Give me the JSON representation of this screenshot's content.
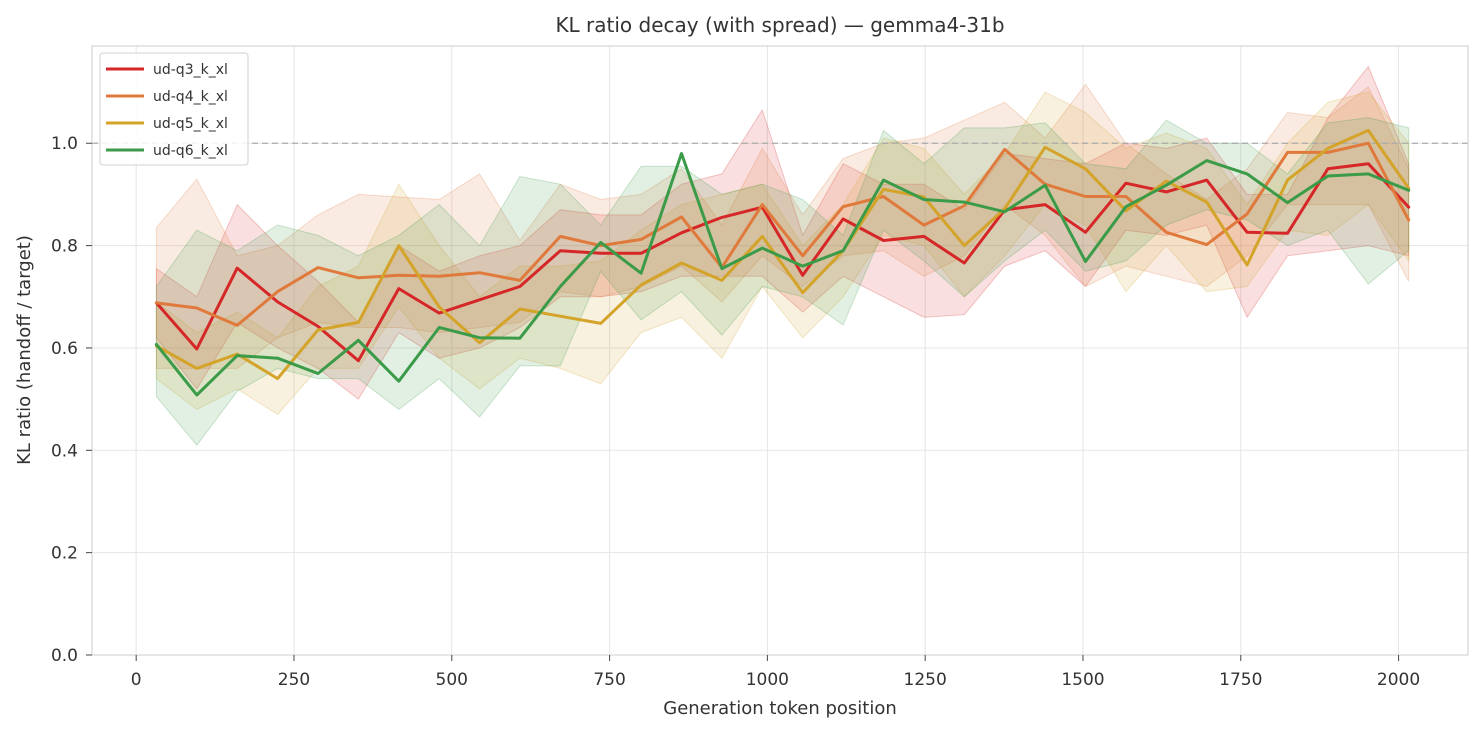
{
  "chart_data": {
    "type": "line",
    "title": "KL ratio decay (with spread) — gemma4-31b",
    "xlabel": "Generation token position",
    "ylabel": "KL ratio (handoff / target)",
    "xlim": [
      -70,
      2110
    ],
    "ylim": [
      0.0,
      1.19
    ],
    "xticks": [
      0,
      250,
      500,
      750,
      1000,
      1250,
      1500,
      1750,
      2000
    ],
    "yticks": [
      0.0,
      0.2,
      0.4,
      0.6,
      0.8,
      1.0
    ],
    "ytick_labels": [
      "0.0",
      "0.2",
      "0.4",
      "0.6",
      "0.8",
      "1.0"
    ],
    "reference_line": 1.0,
    "grid": true,
    "legend_position": "top-left",
    "x": [
      32,
      96,
      160,
      224,
      288,
      352,
      416,
      480,
      544,
      608,
      672,
      736,
      800,
      864,
      928,
      992,
      1056,
      1120,
      1184,
      1248,
      1312,
      1376,
      1440,
      1504,
      1568,
      1632,
      1696,
      1760,
      1824,
      1888,
      1952,
      2016
    ],
    "series": [
      {
        "name": "ud-q3_k_xl",
        "color": "#d62728",
        "values": [
          0.688,
          0.598,
          0.756,
          0.69,
          0.642,
          0.575,
          0.716,
          0.668,
          0.694,
          0.72,
          0.79,
          0.785,
          0.785,
          0.825,
          0.855,
          0.875,
          0.742,
          0.852,
          0.81,
          0.818,
          0.766,
          0.87,
          0.88,
          0.826,
          0.922,
          0.905,
          0.928,
          0.826,
          0.824,
          0.95,
          0.96,
          0.875
        ],
        "lower": [
          0.62,
          0.52,
          0.65,
          0.6,
          0.56,
          0.5,
          0.63,
          0.58,
          0.6,
          0.64,
          0.7,
          0.7,
          0.71,
          0.74,
          0.74,
          0.74,
          0.67,
          0.74,
          0.7,
          0.66,
          0.665,
          0.76,
          0.79,
          0.72,
          0.83,
          0.82,
          0.84,
          0.66,
          0.78,
          0.79,
          0.8,
          0.78
        ],
        "upper": [
          0.755,
          0.7,
          0.88,
          0.8,
          0.73,
          0.65,
          0.8,
          0.75,
          0.78,
          0.8,
          0.87,
          0.86,
          0.86,
          0.92,
          0.94,
          1.065,
          0.82,
          0.96,
          0.92,
          0.92,
          0.87,
          0.98,
          0.97,
          0.96,
          1.0,
          0.99,
          1.01,
          0.9,
          0.9,
          1.05,
          1.15,
          0.96
        ]
      },
      {
        "name": "ud-q4_k_xl",
        "color": "#e0793c",
        "values": [
          0.688,
          0.678,
          0.644,
          0.71,
          0.757,
          0.737,
          0.742,
          0.74,
          0.747,
          0.732,
          0.818,
          0.8,
          0.812,
          0.856,
          0.757,
          0.88,
          0.78,
          0.876,
          0.896,
          0.84,
          0.878,
          0.988,
          0.92,
          0.896,
          0.896,
          0.826,
          0.802,
          0.862,
          0.982,
          0.982,
          1.0,
          0.85
        ],
        "lower": [
          0.56,
          0.56,
          0.56,
          0.62,
          0.65,
          0.64,
          0.64,
          0.63,
          0.64,
          0.65,
          0.71,
          0.7,
          0.72,
          0.76,
          0.69,
          0.78,
          0.72,
          0.78,
          0.79,
          0.74,
          0.78,
          0.88,
          0.82,
          0.72,
          0.76,
          0.74,
          0.72,
          0.78,
          0.88,
          0.88,
          0.88,
          0.73
        ],
        "upper": [
          0.835,
          0.93,
          0.78,
          0.8,
          0.86,
          0.9,
          0.895,
          0.89,
          0.94,
          0.81,
          0.92,
          0.89,
          0.9,
          0.95,
          0.84,
          0.99,
          0.86,
          0.97,
          1.0,
          1.01,
          1.045,
          1.08,
          1.01,
          1.115,
          1.0,
          0.94,
          0.89,
          0.95,
          1.06,
          1.05,
          1.11,
          0.95
        ]
      },
      {
        "name": "ud-q5_k_xl",
        "color": "#d4a32a",
        "values": [
          0.604,
          0.56,
          0.588,
          0.54,
          0.635,
          0.65,
          0.8,
          0.68,
          0.61,
          0.676,
          0.662,
          0.648,
          0.723,
          0.766,
          0.732,
          0.818,
          0.708,
          0.79,
          0.91,
          0.895,
          0.8,
          0.872,
          0.992,
          0.95,
          0.868,
          0.926,
          0.885,
          0.762,
          0.928,
          0.99,
          1.025,
          0.912
        ],
        "lower": [
          0.54,
          0.48,
          0.52,
          0.47,
          0.56,
          0.56,
          0.68,
          0.58,
          0.52,
          0.58,
          0.56,
          0.53,
          0.63,
          0.66,
          0.58,
          0.72,
          0.62,
          0.7,
          0.82,
          0.8,
          0.7,
          0.78,
          0.88,
          0.84,
          0.71,
          0.8,
          0.71,
          0.72,
          0.83,
          0.82,
          0.88,
          0.77
        ],
        "upper": [
          0.69,
          0.63,
          0.67,
          0.62,
          0.72,
          0.76,
          0.92,
          0.8,
          0.7,
          0.76,
          0.76,
          0.77,
          0.83,
          0.88,
          0.9,
          0.92,
          0.8,
          0.88,
          1.01,
          0.99,
          0.9,
          0.98,
          1.1,
          1.06,
          0.99,
          1.02,
          0.99,
          0.88,
          1.0,
          1.08,
          1.1,
          1.0
        ]
      },
      {
        "name": "ud-q6_k_xl",
        "color": "#3b9b48",
        "values": [
          0.607,
          0.508,
          0.585,
          0.58,
          0.55,
          0.615,
          0.535,
          0.64,
          0.62,
          0.619,
          0.72,
          0.806,
          0.746,
          0.98,
          0.755,
          0.795,
          0.76,
          0.79,
          0.928,
          0.89,
          0.885,
          0.866,
          0.918,
          0.769,
          0.876,
          0.918,
          0.966,
          0.94,
          0.884,
          0.936,
          0.94,
          0.908
        ],
        "lower": [
          0.505,
          0.41,
          0.515,
          0.56,
          0.54,
          0.54,
          0.48,
          0.54,
          0.465,
          0.565,
          0.565,
          0.75,
          0.655,
          0.71,
          0.625,
          0.72,
          0.7,
          0.645,
          0.83,
          0.77,
          0.7,
          0.77,
          0.83,
          0.75,
          0.77,
          0.84,
          0.87,
          0.85,
          0.8,
          0.83,
          0.725,
          0.79
        ],
        "upper": [
          0.72,
          0.83,
          0.79,
          0.84,
          0.82,
          0.78,
          0.82,
          0.88,
          0.8,
          0.935,
          0.92,
          0.84,
          0.955,
          0.955,
          0.9,
          0.92,
          0.89,
          0.82,
          1.025,
          0.96,
          1.03,
          1.03,
          1.04,
          0.96,
          0.95,
          1.045,
          1.0,
          1.0,
          0.94,
          1.04,
          1.05,
          1.03
        ]
      }
    ]
  }
}
